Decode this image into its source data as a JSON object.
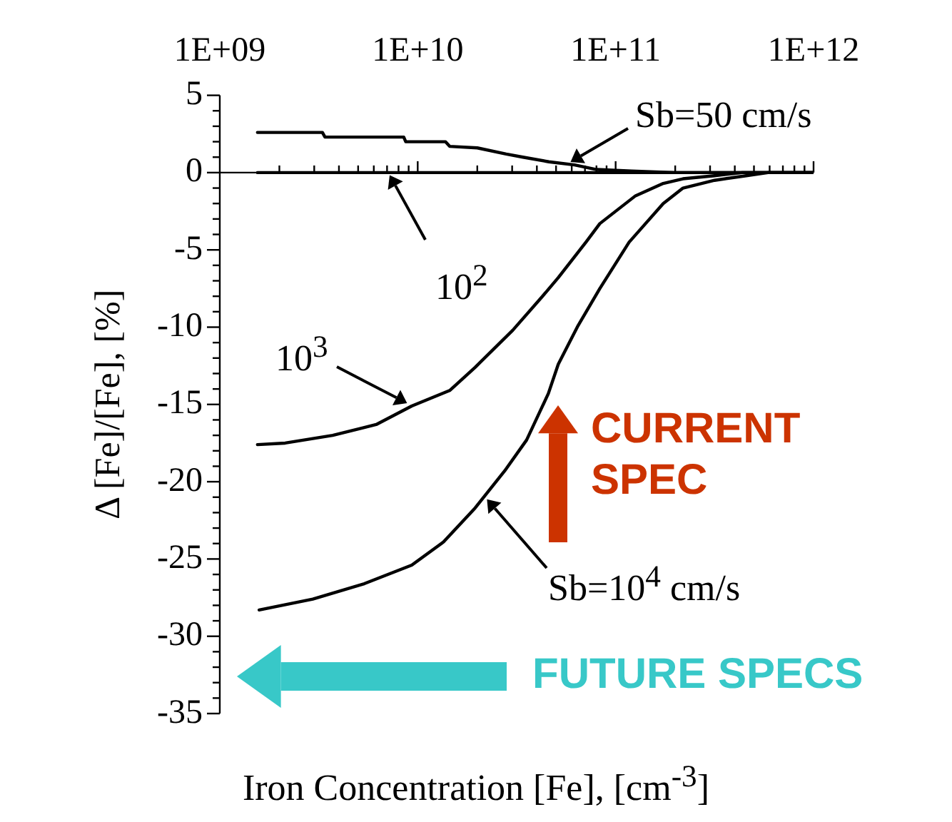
{
  "chart_data": {
    "type": "line",
    "xlabel": "Iron Concentration [Fe], [cm$^{-3}$]",
    "ylabel": "Δ [Fe]/[Fe], [%]",
    "log": "x",
    "xlim": [
      1000000000.0,
      1000000000000.0
    ],
    "ylim": [
      -35,
      5
    ],
    "xticks": [
      {
        "value": 1000000000.0,
        "label": "1E+09"
      },
      {
        "value": 2000000000.0,
        "label": null
      },
      {
        "value": 3000000000.0,
        "label": null
      },
      {
        "value": 4000000000.0,
        "label": null
      },
      {
        "value": 5000000000.0,
        "label": null
      },
      {
        "value": 6000000000.0,
        "label": null
      },
      {
        "value": 7000000000.0,
        "label": null
      },
      {
        "value": 8000000000.0,
        "label": null
      },
      {
        "value": 9000000000.0,
        "label": null
      },
      {
        "value": 10000000000.0,
        "label": "1E+10"
      },
      {
        "value": 20000000000.0,
        "label": null
      },
      {
        "value": 30000000000.0,
        "label": null
      },
      {
        "value": 40000000000.0,
        "label": null
      },
      {
        "value": 50000000000.0,
        "label": null
      },
      {
        "value": 60000000000.0,
        "label": null
      },
      {
        "value": 70000000000.0,
        "label": null
      },
      {
        "value": 80000000000.0,
        "label": null
      },
      {
        "value": 90000000000.0,
        "label": null
      },
      {
        "value": 100000000000.0,
        "label": "1E+11"
      },
      {
        "value": 200000000000.0,
        "label": null
      },
      {
        "value": 300000000000.0,
        "label": null
      },
      {
        "value": 400000000000.0,
        "label": null
      },
      {
        "value": 500000000000.0,
        "label": null
      },
      {
        "value": 600000000000.0,
        "label": null
      },
      {
        "value": 700000000000.0,
        "label": null
      },
      {
        "value": 800000000000.0,
        "label": null
      },
      {
        "value": 900000000000.0,
        "label": null
      },
      {
        "value": 1000000000000.0,
        "label": "1E+12"
      }
    ],
    "yticks": [
      5,
      {
        "value": 4,
        "label": null
      },
      {
        "value": 3,
        "label": null
      },
      {
        "value": 2,
        "label": null
      },
      {
        "value": 1,
        "label": null
      },
      0,
      {
        "value": -1,
        "label": null
      },
      {
        "value": -2,
        "label": null
      },
      {
        "value": -3,
        "label": null
      },
      {
        "value": -4,
        "label": null
      },
      -5,
      {
        "value": -6,
        "label": null
      },
      {
        "value": -7,
        "label": null
      },
      {
        "value": -8,
        "label": null
      },
      {
        "value": -9,
        "label": null
      },
      -10,
      {
        "value": -11,
        "label": null
      },
      {
        "value": -12,
        "label": null
      },
      {
        "value": -13,
        "label": null
      },
      {
        "value": -14,
        "label": null
      },
      -15,
      {
        "value": -16,
        "label": null
      },
      {
        "value": -17,
        "label": null
      },
      {
        "value": -18,
        "label": null
      },
      {
        "value": -19,
        "label": null
      },
      -20,
      {
        "value": -21,
        "label": null
      },
      {
        "value": -22,
        "label": null
      },
      {
        "value": -23,
        "label": null
      },
      {
        "value": -24,
        "label": null
      },
      -25,
      {
        "value": -26,
        "label": null
      },
      {
        "value": -27,
        "label": null
      },
      {
        "value": -28,
        "label": null
      },
      {
        "value": -29,
        "label": null
      },
      -30,
      {
        "value": -31,
        "label": null
      },
      {
        "value": -32,
        "label": null
      },
      {
        "value": -33,
        "label": null
      },
      {
        "value": -34,
        "label": null
      },
      -35
    ],
    "grid": false,
    "legend": false,
    "marker": "none",
    "line_style": "solid",
    "series": [
      {
        "color": "#000000",
        "x": [
          1550000000.0,
          3300000000.0,
          3400000000.0,
          8500000000.0,
          8700000000.0,
          13800000000.0,
          14500000000.0,
          20000000000.0,
          28000000000.0,
          34000000000.0,
          46000000000.0,
          62000000000.0,
          80000000000.0,
          120000000000.0,
          200000000000.0,
          1000000000000.0
        ],
        "values": [
          2.6,
          2.6,
          2.3,
          2.3,
          2.0,
          2.0,
          1.7,
          1.6,
          1.2,
          1.0,
          0.7,
          0.5,
          0.2,
          0.1,
          0,
          0
        ]
      },
      {
        "color": "#000000",
        "x": [
          1550000000.0,
          1000000000000.0
        ],
        "values": [
          0,
          0
        ]
      },
      {
        "color": "#000000",
        "x": [
          1550000000.0,
          2140000000.0,
          3720000000.0,
          6170000000.0,
          9330000000.0,
          14500000000.0,
          19500000000.0,
          30200000000.0,
          42700000000.0,
          51300000000.0,
          70800000000.0,
          83200000000.0,
          126000000000.0,
          174000000000.0,
          219000000000.0,
          316000000000.0,
          437000000000.0,
          1000000000000.0
        ],
        "values": [
          -17.6,
          -17.5,
          -17.0,
          -16.3,
          -15.1,
          -14.1,
          -12.6,
          -10.2,
          -8.0,
          -6.8,
          -4.5,
          -3.3,
          -1.5,
          -0.7,
          -0.4,
          -0.2,
          0,
          0
        ]
      },
      {
        "color": "#000000",
        "x": [
          1580000000.0,
          2950000000.0,
          5370000000.0,
          9330000000.0,
          13500000000.0,
          19500000000.0,
          27500000000.0,
          35500000000.0,
          45700000000.0,
          51300000000.0,
          64600000000.0,
          83200000000.0,
          117000000000.0,
          135000000000.0,
          174000000000.0,
          219000000000.0,
          316000000000.0,
          457000000000.0,
          589000000000.0,
          1000000000000.0
        ],
        "values": [
          -28.3,
          -27.6,
          -26.6,
          -25.4,
          -23.9,
          -21.7,
          -19.3,
          -17.3,
          -14.3,
          -12.4,
          -9.9,
          -7.5,
          -4.5,
          -3.6,
          -2.0,
          -1.0,
          -0.5,
          -0.2,
          0,
          0
        ]
      }
    ],
    "annotations": [
      {
        "text": "Sb=50 cm/s",
        "x": 57500000000.0,
        "y": 0.6
      },
      {
        "text": "10$^{2}$",
        "x": 7100000000.0,
        "y": 0
      },
      {
        "text": "10$^{3}$",
        "x": 9100000000.0,
        "y": -15
      },
      {
        "text": "Sb=10$^{4}$ cm/s",
        "x": 21900000000.0,
        "y": -21
      },
      "CURRENT SPEC",
      "FUTURE SPECS"
    ]
  }
}
